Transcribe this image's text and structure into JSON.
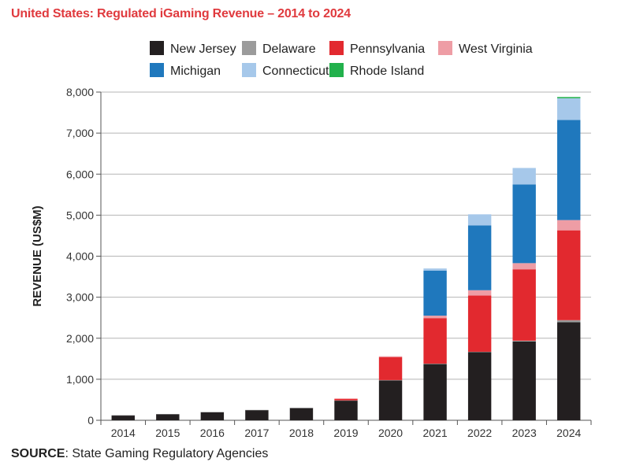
{
  "title": "United States: Regulated iGaming Revenue – 2014 to 2024",
  "source": {
    "label": "SOURCE",
    "text": ": State Gaming Regulatory Agencies"
  },
  "chart_data": {
    "type": "bar",
    "stacked": true,
    "title": "United States: Regulated iGaming Revenue – 2014 to 2024",
    "xlabel": "",
    "ylabel": "REVENUE (US$M)",
    "ylim": [
      0,
      8000
    ],
    "yticks": [
      0,
      1000,
      2000,
      3000,
      4000,
      5000,
      6000,
      7000,
      8000
    ],
    "ytick_labels": [
      "0",
      "1,000",
      "2,000",
      "3,000",
      "4,000",
      "5,000",
      "6,000",
      "7,000",
      "8,000"
    ],
    "categories": [
      "2014",
      "2015",
      "2016",
      "2017",
      "2018",
      "2019",
      "2020",
      "2021",
      "2022",
      "2023",
      "2024"
    ],
    "grid": true,
    "legend_position": "top",
    "series": [
      {
        "name": "New Jersey",
        "color": "#231f20",
        "values": [
          120,
          150,
          200,
          250,
          300,
          480,
          970,
          1370,
          1660,
          1920,
          2390
        ]
      },
      {
        "name": "Delaware",
        "color": "#9b9b9b",
        "values": [
          2,
          2,
          2,
          2,
          2,
          5,
          10,
          10,
          10,
          20,
          50
        ]
      },
      {
        "name": "Pennsylvania",
        "color": "#e2292f",
        "values": [
          0,
          0,
          0,
          0,
          0,
          40,
          560,
          1110,
          1370,
          1740,
          2190
        ]
      },
      {
        "name": "West Virginia",
        "color": "#ee9da5",
        "values": [
          0,
          0,
          0,
          0,
          0,
          0,
          20,
          60,
          130,
          150,
          250
        ]
      },
      {
        "name": "Michigan",
        "color": "#1f78bd",
        "values": [
          0,
          0,
          0,
          0,
          0,
          0,
          0,
          1100,
          1580,
          1920,
          2440
        ]
      },
      {
        "name": "Connecticut",
        "color": "#a6c8ea",
        "values": [
          0,
          0,
          0,
          0,
          0,
          0,
          0,
          50,
          270,
          400,
          530
        ]
      },
      {
        "name": "Rhode Island",
        "color": "#22b14c",
        "values": [
          0,
          0,
          0,
          0,
          0,
          0,
          0,
          0,
          0,
          0,
          30
        ]
      }
    ]
  }
}
